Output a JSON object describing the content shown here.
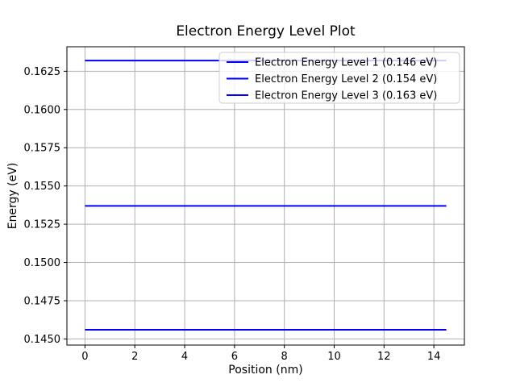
{
  "figure": {
    "background": "#ffffff"
  },
  "chart_data": {
    "type": "line",
    "title": "Electron Energy Level Plot",
    "xlabel": "Position (nm)",
    "ylabel": "Energy (eV)",
    "xlim": [
      -0.725,
      15.225
    ],
    "ylim": [
      0.1446,
      0.1641
    ],
    "x_range": [
      0,
      14.5
    ],
    "grid": true,
    "grid_color": "#b0b0b0",
    "spine_color": "#000000",
    "text_color": "#000000",
    "xtick_values": [
      0,
      2,
      4,
      6,
      8,
      10,
      12,
      14
    ],
    "xtick_labels": [
      "0",
      "2",
      "4",
      "6",
      "8",
      "10",
      "12",
      "14"
    ],
    "ytick_values": [
      0.145,
      0.1475,
      0.15,
      0.1525,
      0.155,
      0.1575,
      0.16,
      0.1625
    ],
    "ytick_labels": [
      "0.1450",
      "0.1475",
      "0.1500",
      "0.1525",
      "0.1550",
      "0.1575",
      "0.1600",
      "0.1625"
    ],
    "series": [
      {
        "name": "Electron Energy Level 1 (0.146 eV)",
        "y": 0.1456,
        "color": "#0000ff",
        "line_width": 2
      },
      {
        "name": "Electron Energy Level 2 (0.154 eV)",
        "y": 0.1537,
        "color": "#0000ff",
        "line_width": 2
      },
      {
        "name": "Electron Energy Level 3 (0.163 eV)",
        "y": 0.1632,
        "color": "#0000ff",
        "line_width": 2
      }
    ],
    "legend": {
      "position": "upper right",
      "frame_color": "#cccccc",
      "background": "#ffffff",
      "background_alpha": 0.8
    }
  }
}
